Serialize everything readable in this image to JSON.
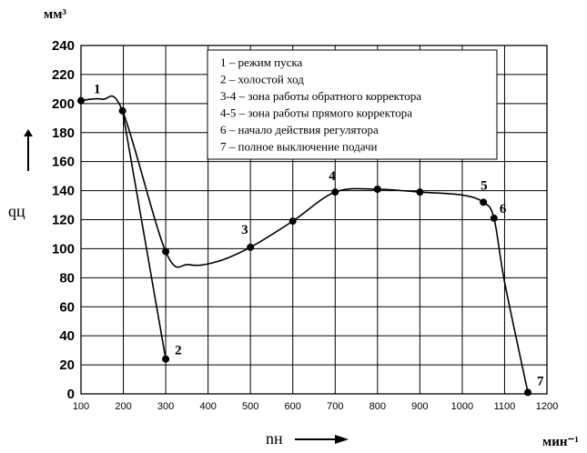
{
  "chart_data": {
    "type": "line",
    "xlim": [
      100,
      1200
    ],
    "ylim": [
      0,
      240
    ],
    "x_ticks": [
      100,
      200,
      300,
      400,
      500,
      600,
      700,
      800,
      900,
      1000,
      1100,
      1200
    ],
    "y_ticks": [
      0,
      20,
      40,
      60,
      80,
      100,
      120,
      140,
      160,
      180,
      200,
      220,
      240
    ],
    "grid": true,
    "y_unit": "мм³",
    "x_unit": "мин⁻¹",
    "ylabel": "qц",
    "xlabel": "nн",
    "series": [
      {
        "role": "main_curve",
        "points": [
          [
            100,
            202
          ],
          [
            150,
            203
          ],
          [
            198,
            195
          ],
          [
            300,
            98
          ],
          [
            355,
            89
          ],
          [
            420,
            91
          ],
          [
            500,
            101
          ],
          [
            600,
            119
          ],
          [
            700,
            139
          ],
          [
            800,
            141
          ],
          [
            900,
            139
          ],
          [
            1000,
            137
          ],
          [
            1050,
            132
          ],
          [
            1075,
            121
          ],
          [
            1100,
            77
          ],
          [
            1155,
            1
          ]
        ]
      },
      {
        "role": "idle_curve",
        "points": [
          [
            198,
            195
          ],
          [
            300,
            24
          ]
        ]
      }
    ],
    "marked_points": [
      {
        "label": "1",
        "x": 100,
        "y": 202
      },
      {
        "label": "",
        "x": 198,
        "y": 195
      },
      {
        "label": "2",
        "x": 300,
        "y": 24
      },
      {
        "label": "",
        "x": 300,
        "y": 98
      },
      {
        "label": "3",
        "x": 500,
        "y": 101
      },
      {
        "label": "",
        "x": 600,
        "y": 119
      },
      {
        "label": "4",
        "x": 700,
        "y": 139
      },
      {
        "label": "",
        "x": 800,
        "y": 141
      },
      {
        "label": "",
        "x": 900,
        "y": 139
      },
      {
        "label": "5",
        "x": 1050,
        "y": 132
      },
      {
        "label": "6",
        "x": 1075,
        "y": 121
      },
      {
        "label": "7",
        "x": 1155,
        "y": 1
      }
    ],
    "legend": {
      "placement": "top-center",
      "entries": [
        "1 – режим пуска",
        "2 – холостой ход",
        "3-4 – зона работы обратного корректора",
        "4-5 – зона работы прямого корректора",
        "6 – начало действия регулятора",
        "7 – полное выключение подачи"
      ]
    }
  }
}
